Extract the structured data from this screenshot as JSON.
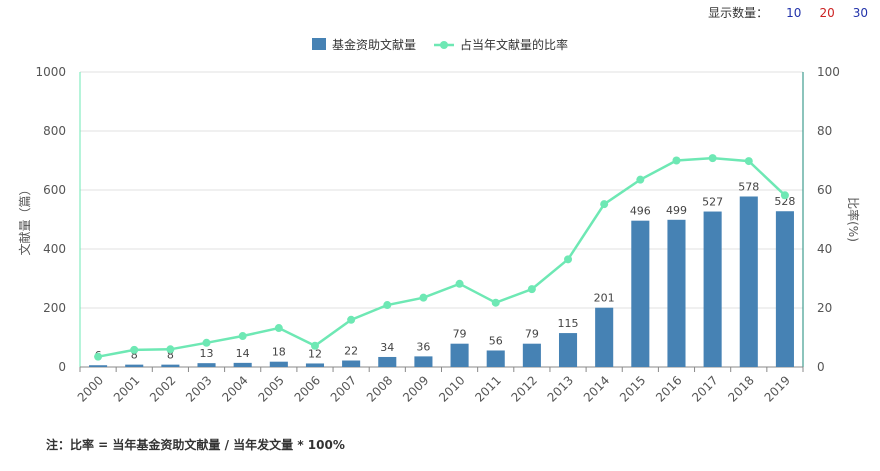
{
  "display_controls": {
    "label": "显示数量：",
    "options": [
      {
        "label": "10",
        "color": "#2233aa"
      },
      {
        "label": "20",
        "color": "#cc2222"
      },
      {
        "label": "30",
        "color": "#2233aa"
      }
    ]
  },
  "note": "注：比率 = 当年基金资助文献量 / 当年发文量 * 100%",
  "colors": {
    "bar": "#4682b4",
    "line": "#6ee8b4",
    "grid": "#e0e0e0",
    "axis": "#333333"
  },
  "chart_data": {
    "type": "bar+line",
    "categories": [
      "2000",
      "2001",
      "2002",
      "2003",
      "2004",
      "2005",
      "2006",
      "2007",
      "2008",
      "2009",
      "2010",
      "2011",
      "2012",
      "2013",
      "2014",
      "2015",
      "2016",
      "2017",
      "2018",
      "2019"
    ],
    "series": [
      {
        "name": "基金资助文献量",
        "type": "bar",
        "axis": "left",
        "values": [
          6,
          8,
          8,
          13,
          14,
          18,
          12,
          22,
          34,
          36,
          79,
          56,
          79,
          115,
          201,
          496,
          499,
          527,
          578,
          528
        ]
      },
      {
        "name": "占当年文献量的比率",
        "type": "line",
        "axis": "right",
        "values": [
          3.5,
          5.8,
          6.0,
          8.2,
          10.5,
          13.2,
          7.2,
          16.0,
          21.0,
          23.5,
          28.2,
          21.8,
          26.4,
          36.5,
          55.2,
          63.5,
          70.0,
          70.8,
          69.8,
          58.2
        ]
      }
    ],
    "ylabel": "文献量（篇）",
    "y2label": "比率(%)",
    "ylim": [
      0,
      1000
    ],
    "y2lim": [
      0,
      100
    ],
    "yticks": [
      "0",
      "200",
      "400",
      "600",
      "800",
      "1000"
    ],
    "y2ticks": [
      "0",
      "20",
      "40",
      "60",
      "80",
      "100"
    ],
    "legend_position": "top-center",
    "grid": true
  }
}
